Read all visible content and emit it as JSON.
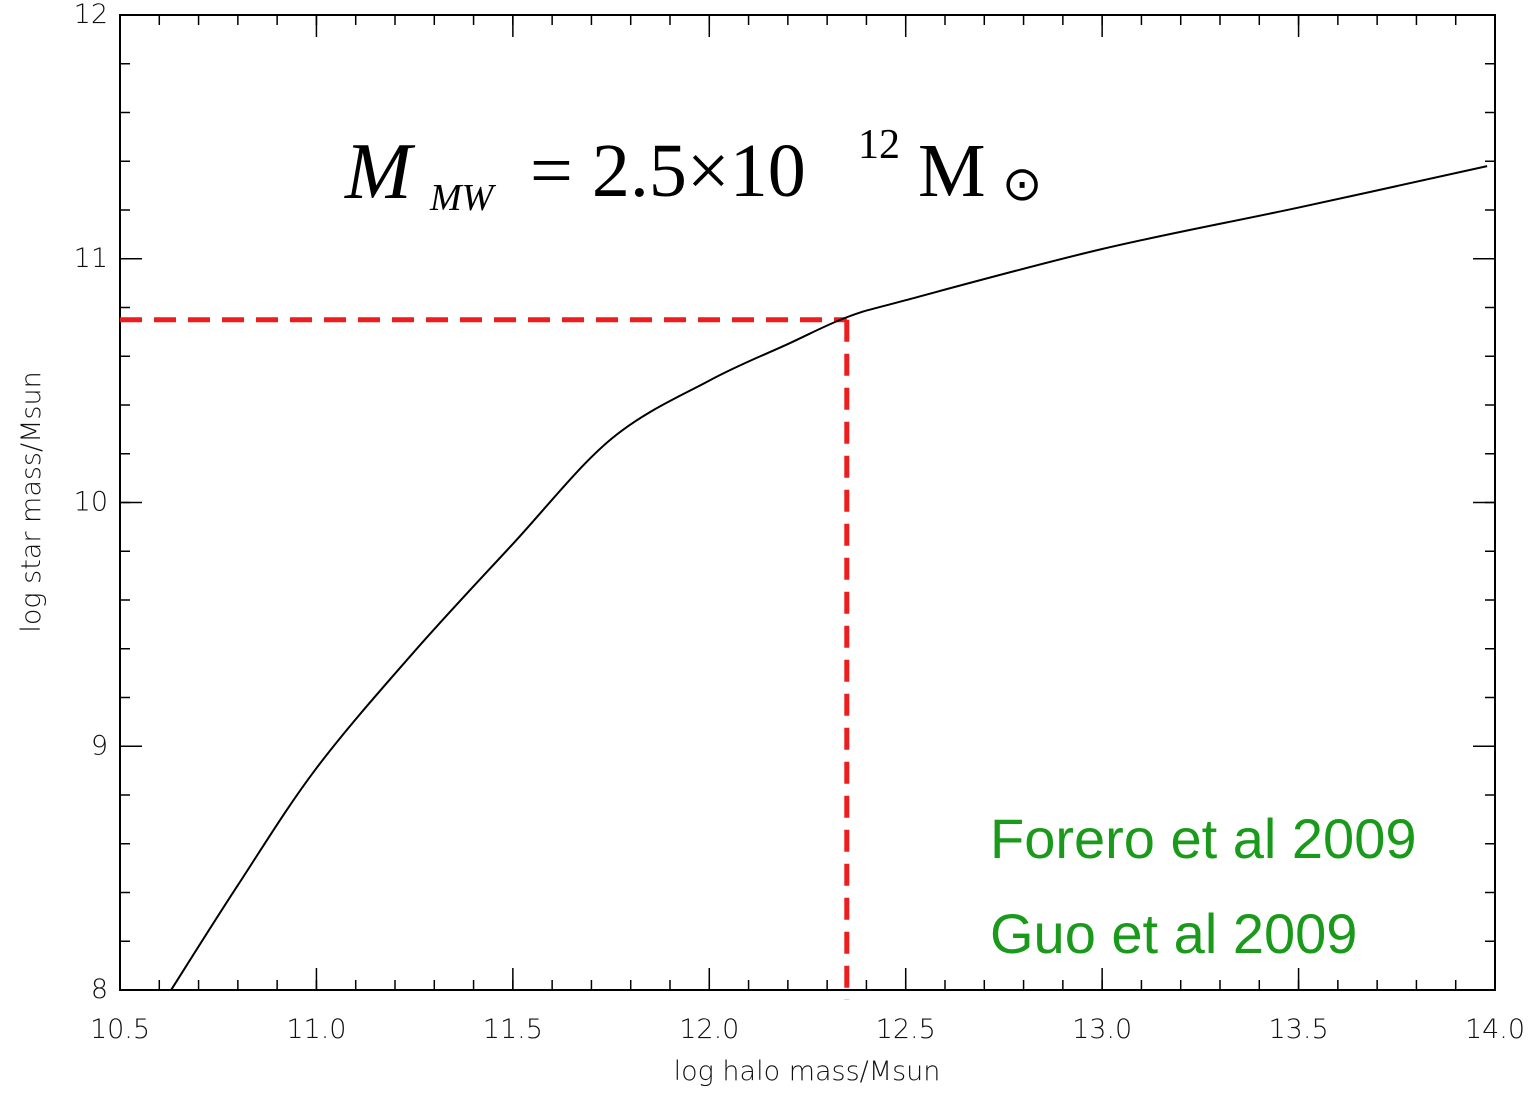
{
  "chart_data": {
    "type": "line",
    "xlabel": "log halo mass/Msun",
    "ylabel": "log star mass/Msun",
    "xlim": [
      10.5,
      14.0
    ],
    "ylim": [
      8,
      12
    ],
    "xticks": [
      10.5,
      {
        "value": 11,
        "label": "11.0"
      },
      11.5,
      {
        "value": 12,
        "label": "12.0"
      },
      12.5,
      {
        "value": 13,
        "label": "13.0"
      },
      13.5,
      {
        "value": 14,
        "label": "14.0"
      }
    ],
    "yticks": [
      8,
      9,
      10,
      11,
      12
    ],
    "xminor": 0.1,
    "yminor": 0.2,
    "series": [
      {
        "color": "#000000",
        "x": [
          10.63,
          10.8,
          11.0,
          11.25,
          11.5,
          11.75,
          12.0,
          12.2,
          12.35,
          12.5,
          13.0,
          13.5,
          13.98
        ],
        "values": [
          8.0,
          8.43,
          8.91,
          9.39,
          9.83,
          10.26,
          10.5,
          10.65,
          10.76,
          10.83,
          11.04,
          11.21,
          11.38
        ]
      }
    ],
    "guide": {
      "x": 12.35,
      "y": 10.75,
      "color": "#ee1c1c"
    },
    "formula": {
      "symbol": "M",
      "subscript": "MW",
      "equals": "= 2.5×10",
      "exponent": "12",
      "unit": "M",
      "unit_sub": "⊙"
    },
    "annotations": [
      {
        "text": "Forero et al 2009",
        "color": "#1a9a1a"
      },
      {
        "text": "Guo et al 2009",
        "color": "#1a9a1a"
      }
    ]
  }
}
